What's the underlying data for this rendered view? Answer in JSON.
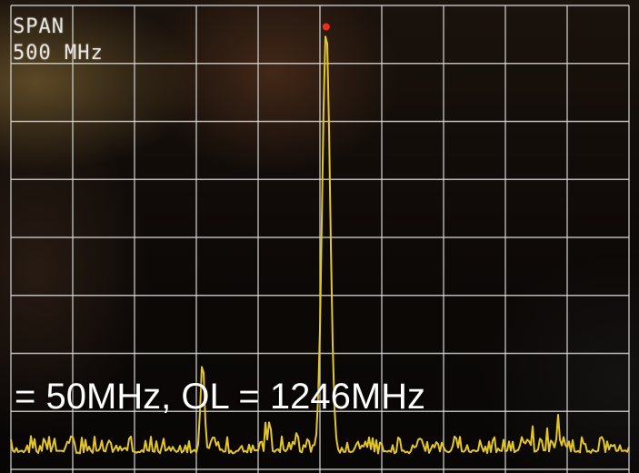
{
  "display": {
    "span_label": "SPAN",
    "span_value": "500 MHz",
    "caption": "= 50MHz, OL = 1246MHz"
  },
  "colors": {
    "grid": "#d8d8d8",
    "trace": "#e3c628",
    "marker": "#e8311d"
  },
  "chart_data": {
    "type": "line",
    "grid": true,
    "divisions": {
      "x": 10,
      "y": 8
    },
    "span": "500 MHz",
    "peaks": [
      {
        "label": "peak-small",
        "x_div": 3.1,
        "level_div": 1.9
      },
      {
        "label": "peak-main",
        "x_div": 5.1,
        "level_div": 7.6,
        "marker": true
      }
    ],
    "noise_floor_div": 0.3
  }
}
